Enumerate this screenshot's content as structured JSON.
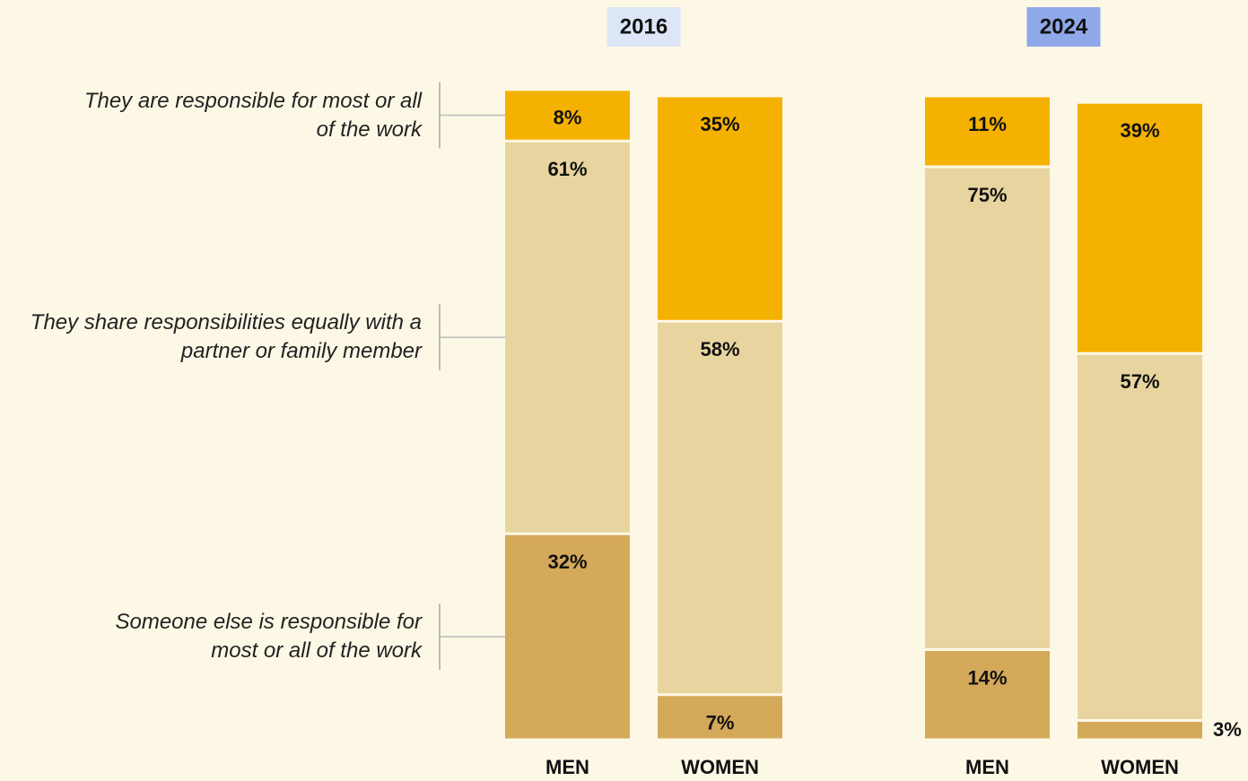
{
  "chart_data": {
    "type": "stacked_bar",
    "groups": [
      {
        "label": "2016",
        "color": "#dde6f7",
        "categories": [
          "MEN",
          "WOMEN"
        ]
      },
      {
        "label": "2024",
        "color": "#8fa8ea",
        "categories": [
          "MEN",
          "WOMEN"
        ]
      }
    ],
    "series": [
      {
        "name": "They are responsible for most or all of the work",
        "color": "#f5b100",
        "values": [
          8,
          35,
          11,
          39
        ],
        "value_labels": [
          "8%",
          "35%",
          "11%",
          "39%"
        ]
      },
      {
        "name": "They share responsibilities equally with a partner or family member",
        "color": "#e8d49e",
        "values": [
          61,
          58,
          75,
          57
        ],
        "value_labels": [
          "61%",
          "58%",
          "75%",
          "57%"
        ]
      },
      {
        "name": "Someone else is responsible for most or all of the work",
        "color": "#d4a95a",
        "values": [
          32,
          7,
          14,
          3
        ],
        "value_labels": [
          "32%",
          "7%",
          "14%",
          "3%"
        ]
      }
    ],
    "ylim": [
      0,
      100
    ]
  }
}
